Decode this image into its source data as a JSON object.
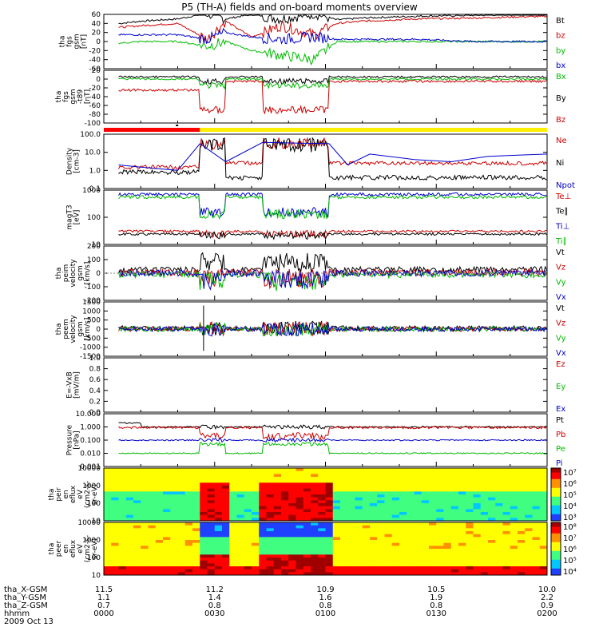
{
  "title": "P5 (TH-A) fields and on-board moments overview",
  "panels": [
    {
      "id": "fgs",
      "ylabel": [
        "tha",
        "fgs",
        "gsm",
        "[nT]"
      ],
      "ticks": [
        "60",
        "40",
        "20",
        "0",
        "-20",
        "-40",
        "-60"
      ],
      "legend": [
        {
          "label": "Bt",
          "color": "#000000"
        },
        {
          "label": "bz",
          "color": "#cc0000"
        },
        {
          "label": "by",
          "color": "#00bb00"
        },
        {
          "label": "bx",
          "color": "#0000cc"
        }
      ]
    },
    {
      "id": "fgs_sm",
      "ylabel": [
        "tha",
        "fgs",
        "gsm",
        "-t89",
        "[nT]"
      ],
      "ticks": [
        "20",
        "0",
        "-20",
        "-40",
        "-60",
        "-80",
        "-100"
      ],
      "legend": [
        {
          "label": "Bx",
          "color": "#00bb00"
        },
        {
          "label": "By",
          "color": "#000000"
        },
        {
          "label": "Bz",
          "color": "#cc0000"
        }
      ]
    },
    {
      "id": "density",
      "ylabel": [
        "Density",
        "[cm-3]"
      ],
      "ticks": [
        "100.0",
        "10.0",
        "1.0",
        "0.1"
      ],
      "legend": [
        {
          "label": "Ne",
          "color": "#cc0000"
        },
        {
          "label": "Ni",
          "color": "#000000"
        },
        {
          "label": "Npot",
          "color": "#0000cc"
        }
      ]
    },
    {
      "id": "temp",
      "ylabel": [
        "magT3",
        "[eV]"
      ],
      "ticks": [
        "1000",
        "100",
        "10"
      ],
      "legend": [
        {
          "label": "Te⊥",
          "color": "#cc0000"
        },
        {
          "label": "Te∥",
          "color": "#000000"
        },
        {
          "label": "Ti⊥",
          "color": "#0000cc"
        },
        {
          "label": "Ti∥",
          "color": "#00bb00"
        }
      ]
    },
    {
      "id": "peim",
      "ylabel": [
        "tha",
        "peim",
        "velocity",
        "gsm",
        "[km/s]"
      ],
      "ticks": [
        "200",
        "100",
        "0",
        "-100",
        "-200"
      ],
      "legend": [
        {
          "label": "Vt",
          "color": "#000000"
        },
        {
          "label": "Vz",
          "color": "#cc0000"
        },
        {
          "label": "Vy",
          "color": "#00bb00"
        },
        {
          "label": "Vx",
          "color": "#0000cc"
        }
      ]
    },
    {
      "id": "peem",
      "ylabel": [
        "tha",
        "peem",
        "velocity",
        "gsm",
        "[km/s]"
      ],
      "ticks": [
        "1500",
        "1000",
        "500",
        "0",
        "-500",
        "-1000",
        "-1500"
      ],
      "legend": [
        {
          "label": "Vt",
          "color": "#000000"
        },
        {
          "label": "Vz",
          "color": "#cc0000"
        },
        {
          "label": "Vy",
          "color": "#00bb00"
        },
        {
          "label": "Vx",
          "color": "#0000cc"
        }
      ]
    },
    {
      "id": "efield",
      "ylabel": [
        "E=-VxB",
        "[mV/m]"
      ],
      "ticks": [
        "1.0",
        "0.8",
        "0.6",
        "0.4",
        "0.2",
        "0.0"
      ],
      "legend": [
        {
          "label": "Ez",
          "color": "#cc0000"
        },
        {
          "label": "Ey",
          "color": "#00bb00"
        },
        {
          "label": "Ex",
          "color": "#0000cc"
        }
      ]
    },
    {
      "id": "pressure",
      "ylabel": [
        "Pressure",
        "[nPa]"
      ],
      "ticks": [
        "10.000",
        "1.000",
        "0.100",
        "0.010",
        "0.001"
      ],
      "legend": [
        {
          "label": "Pt",
          "color": "#000000"
        },
        {
          "label": "Pb",
          "color": "#cc0000"
        },
        {
          "label": "Pe",
          "color": "#00bb00"
        },
        {
          "label": "Pi",
          "color": "#0000cc"
        }
      ]
    },
    {
      "id": "peir",
      "ylabel": [
        "tha",
        "peir",
        "en",
        "eflux",
        "eV",
        "(cm2-s-",
        "sr-eV)"
      ],
      "ticks": [
        "10000",
        "1000",
        "100",
        "10"
      ],
      "cbar_ticks": [
        "10⁷",
        "10⁶",
        "10⁵",
        "10⁴",
        "10³"
      ]
    },
    {
      "id": "peer",
      "ylabel": [
        "tha",
        "peer",
        "en",
        "eflux",
        "eV",
        "(cm2-s-",
        "sr-eV)"
      ],
      "ticks": [
        "10000",
        "1000",
        "100",
        "10"
      ],
      "cbar_ticks": [
        "10⁸",
        "10⁷",
        "10⁶",
        "10⁵",
        "10⁴"
      ]
    }
  ],
  "footer": {
    "rows": [
      {
        "label": "tha_X-GSM",
        "values": [
          "11.5",
          "11.2",
          "10.9",
          "10.5",
          "10.0"
        ]
      },
      {
        "label": "tha_Y-GSM",
        "values": [
          "1.1",
          "1.4",
          "1.6",
          "1.9",
          "2.2"
        ]
      },
      {
        "label": "tha_Z-GSM",
        "values": [
          "0.7",
          "0.8",
          "0.8",
          "0.8",
          "0.9"
        ]
      },
      {
        "label": "hhmm",
        "values": [
          "0000",
          "0030",
          "0100",
          "0130",
          "0200"
        ]
      }
    ],
    "date": "2009 Oct 13"
  },
  "chart_data": {
    "type": "line",
    "title": "P5 (TH-A) fields and on-board moments overview",
    "x_ticks": [
      "0000",
      "0030",
      "0100",
      "0130",
      "0200"
    ],
    "x_range": [
      "0000",
      "0200"
    ],
    "series": [
      {
        "name": "Bt",
        "x_min": [
          0,
          2,
          10,
          20,
          28,
          33,
          40,
          48,
          57,
          63,
          70,
          85,
          100,
          115,
          120
        ],
        "values": [
          45,
          38,
          45,
          50,
          62,
          50,
          60,
          50,
          62,
          48,
          52,
          56,
          58,
          60,
          60
        ]
      },
      {
        "name": "bz",
        "x_min": [
          0,
          2,
          10,
          20,
          28,
          33,
          40,
          48,
          57,
          63,
          70,
          85,
          100,
          115,
          120
        ],
        "values": [
          40,
          30,
          35,
          40,
          5,
          45,
          10,
          35,
          15,
          40,
          45,
          50,
          52,
          55,
          55
        ]
      },
      {
        "name": "by",
        "x_min": [
          0,
          2,
          10,
          20,
          28,
          33,
          40,
          48,
          57,
          63,
          70,
          85,
          100,
          115,
          120
        ],
        "values": [
          0,
          -5,
          0,
          0,
          -10,
          0,
          -20,
          -30,
          -40,
          0,
          0,
          0,
          0,
          0,
          0
        ]
      },
      {
        "name": "bx",
        "x_min": [
          0,
          2,
          10,
          20,
          28,
          33,
          40,
          48,
          57,
          63,
          70,
          85,
          100,
          115,
          120
        ],
        "values": [
          20,
          15,
          15,
          15,
          5,
          20,
          10,
          5,
          10,
          5,
          5,
          5,
          0,
          0,
          0
        ]
      }
    ]
  }
}
